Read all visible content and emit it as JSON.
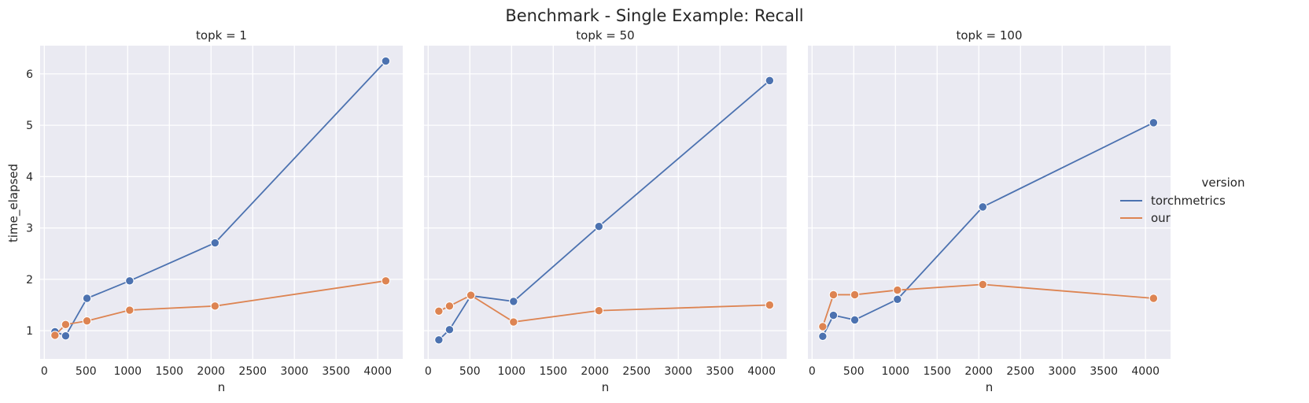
{
  "chart_data": {
    "type": "line",
    "title": "Benchmark - Single Example: Recall",
    "xlabel": "n",
    "ylabel": "time_elapsed",
    "x": [
      128,
      256,
      512,
      1024,
      2048,
      4096
    ],
    "xlim": [
      -50,
      4300
    ],
    "ylim": [
      0.45,
      6.55
    ],
    "xticks": [
      0,
      500,
      1000,
      1500,
      2000,
      2500,
      3000,
      3500,
      4000
    ],
    "yticks": [
      1,
      2,
      3,
      4,
      5,
      6
    ],
    "grid": true,
    "legend": {
      "title": "version",
      "position": "right",
      "entries": [
        "torchmetrics",
        "our"
      ]
    },
    "colors": {
      "torchmetrics": "#4c72b0",
      "our": "#dd8452",
      "panel_bg": "#eaeaf2",
      "grid": "#ffffff"
    },
    "panels": [
      {
        "title": "topk = 1",
        "series": [
          {
            "name": "torchmetrics",
            "values": [
              0.98,
              0.9,
              1.63,
              1.97,
              2.71,
              6.25
            ]
          },
          {
            "name": "our",
            "values": [
              0.91,
              1.12,
              1.19,
              1.4,
              1.48,
              1.97
            ]
          }
        ]
      },
      {
        "title": "topk = 50",
        "series": [
          {
            "name": "torchmetrics",
            "values": [
              0.82,
              1.02,
              1.68,
              1.57,
              3.03,
              5.87
            ]
          },
          {
            "name": "our",
            "values": [
              1.38,
              1.48,
              1.69,
              1.17,
              1.39,
              1.5
            ]
          }
        ]
      },
      {
        "title": "topk = 100",
        "series": [
          {
            "name": "torchmetrics",
            "values": [
              0.89,
              1.3,
              1.21,
              1.61,
              3.41,
              5.05
            ]
          },
          {
            "name": "our",
            "values": [
              1.08,
              1.7,
              1.7,
              1.79,
              1.9,
              1.63
            ]
          }
        ]
      }
    ]
  }
}
